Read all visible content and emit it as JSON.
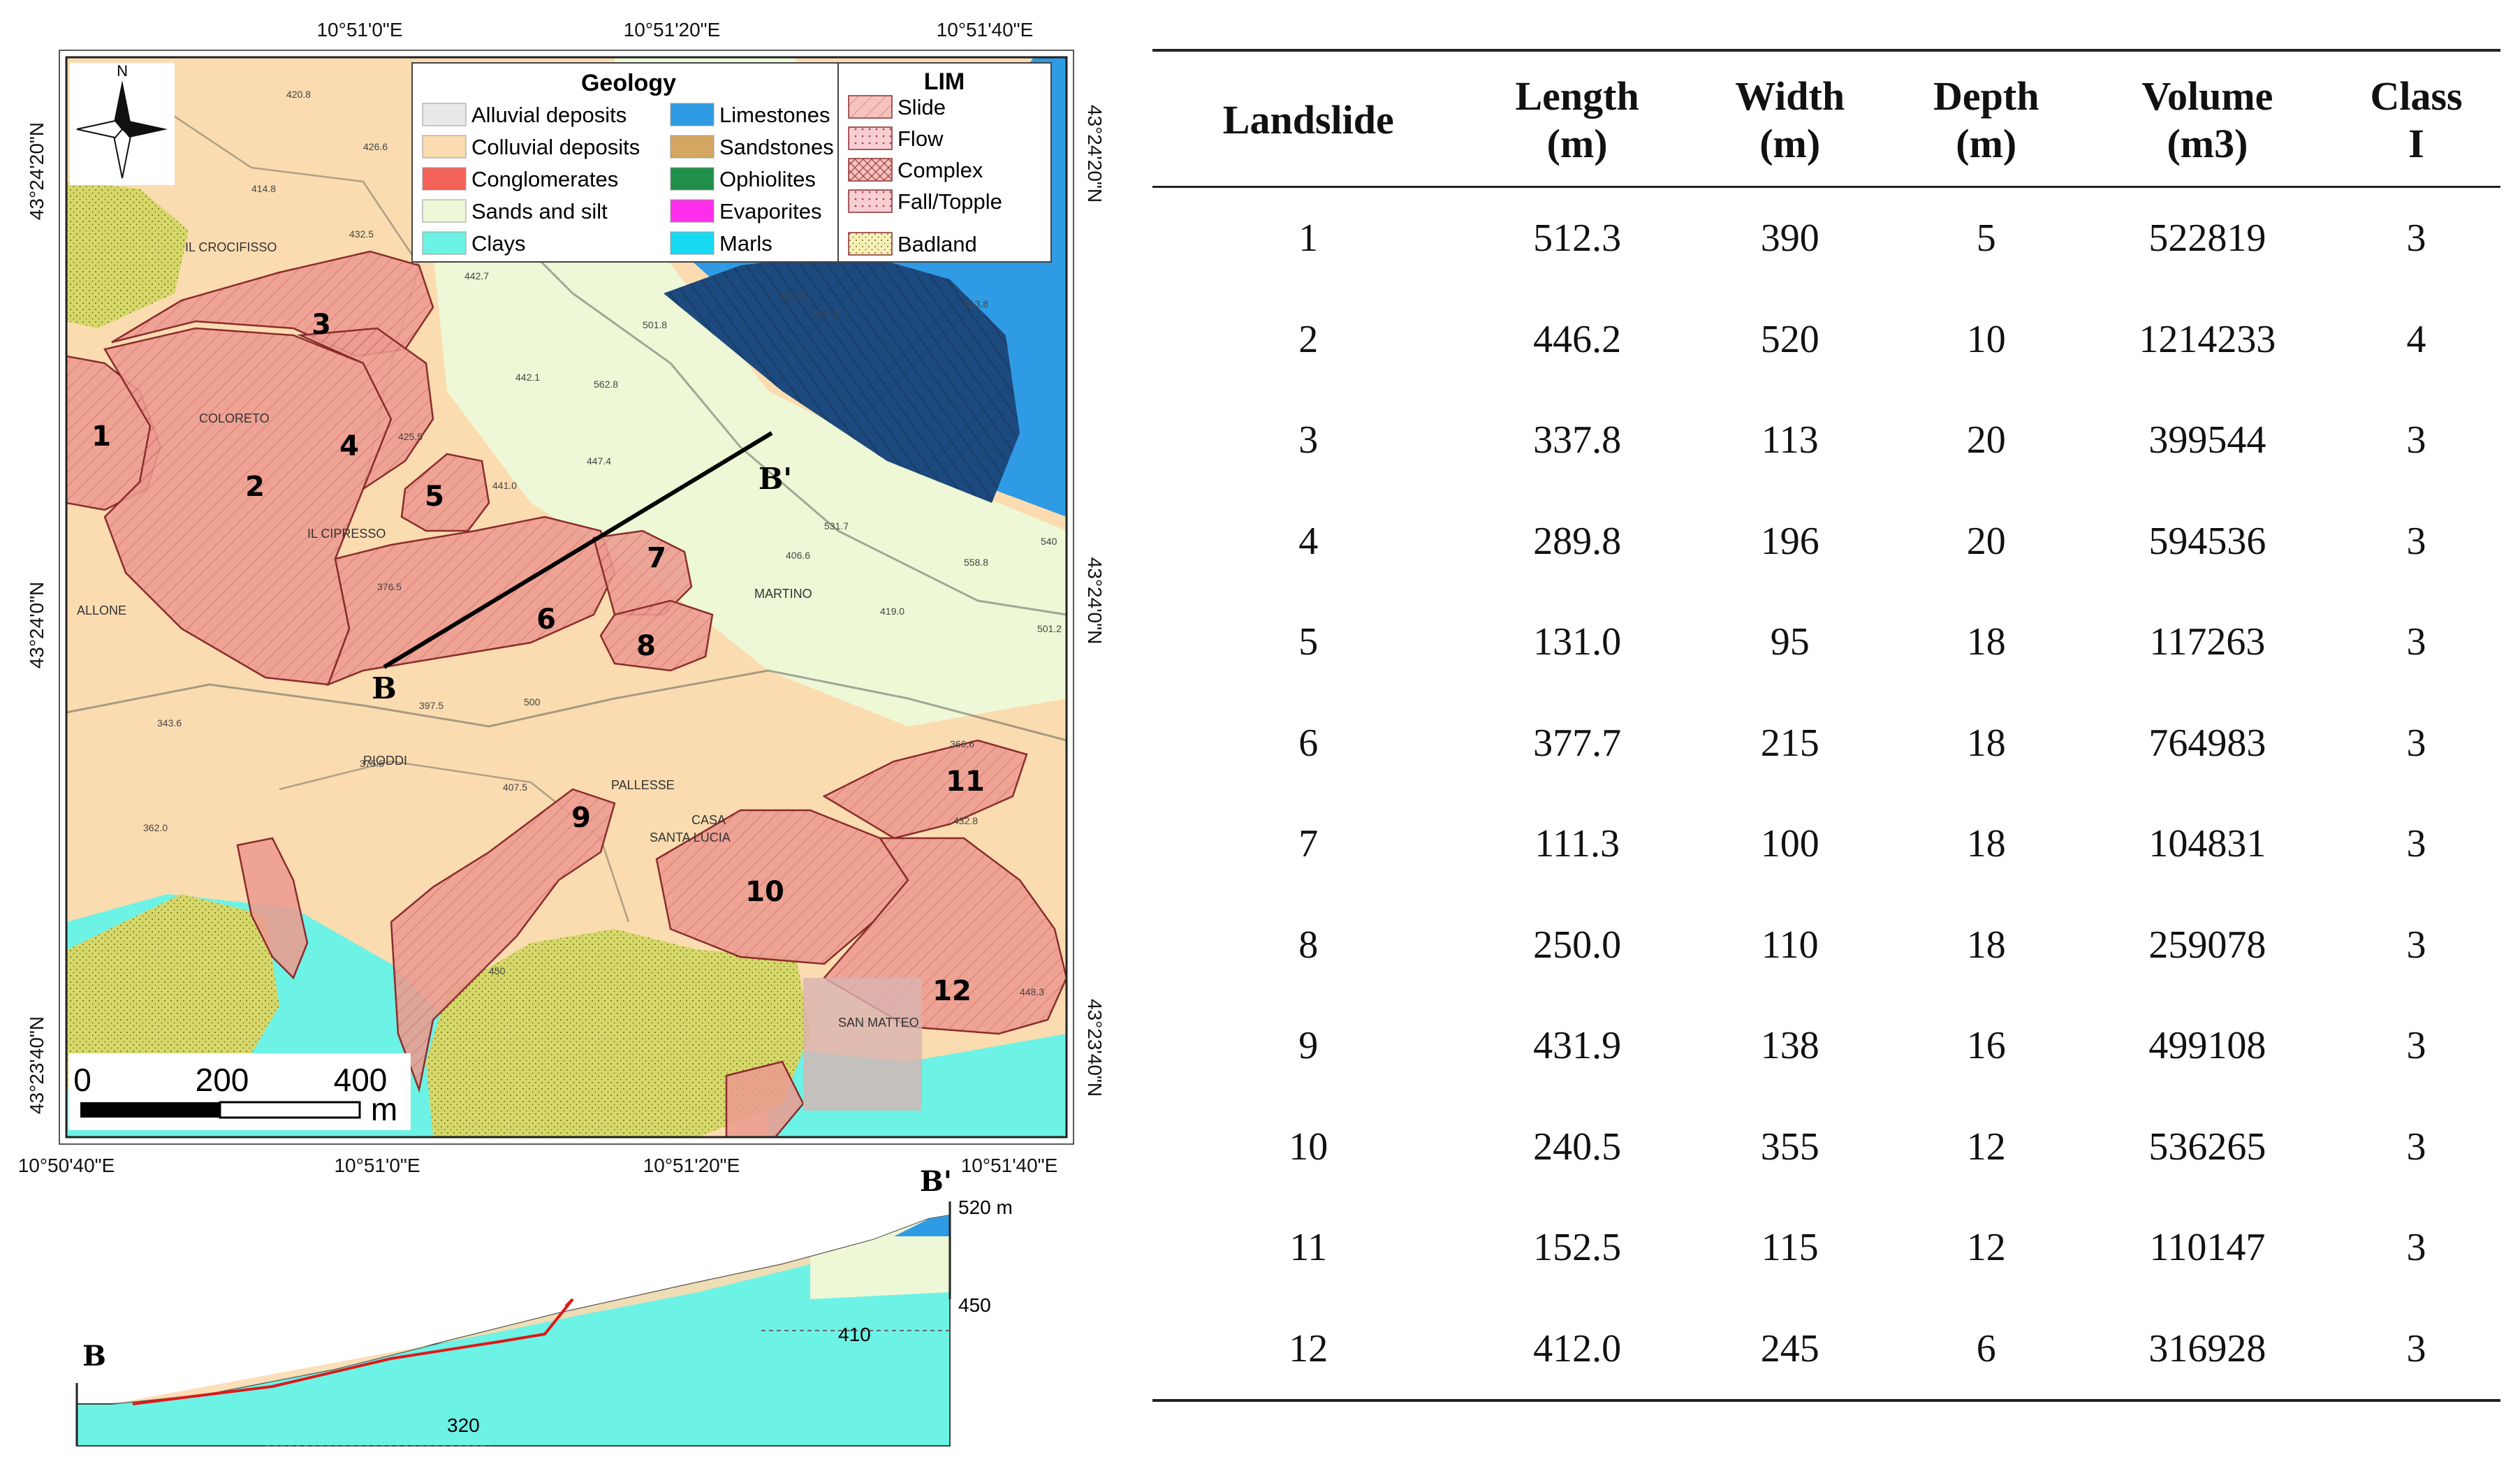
{
  "map": {
    "lon_labels_top": [
      "10°51'0\"E",
      "10°51'20\"E",
      "10°51'40\"E"
    ],
    "lon_labels_bottom": [
      "10°50'40\"E",
      "10°51'0\"E",
      "10°51'20\"E",
      "10°51'40\"E"
    ],
    "lat_labels": [
      "43°24'20\"N",
      "43°24'0\"N",
      "43°23'40\"N"
    ],
    "north_label": "N",
    "scale_numbers": [
      "0",
      "200",
      "400"
    ],
    "scale_unit": "m",
    "section_labels": [
      "B",
      "B'"
    ],
    "landslide_numbers": [
      "1",
      "2",
      "3",
      "4",
      "5",
      "6",
      "7",
      "8",
      "9",
      "10",
      "11",
      "12"
    ],
    "place_names": [
      "IL CROCIFISSO",
      "COLORETO",
      "IL CIPRESSO",
      "ALLONE",
      "RIODDI",
      "PALLESSE",
      "SANTA LUCIA",
      "CASA",
      "SAN MATTEO",
      "MARTINO"
    ],
    "spot_heights": [
      "420.8",
      "426.6",
      "414.8",
      "432.5",
      "442.7",
      "501.8",
      "562.8",
      "512.0",
      "502.3",
      "513.8",
      "442.1",
      "441.0",
      "447.4",
      "425.5",
      "376.5",
      "397.5",
      "375.5",
      "343.6",
      "362.0",
      "407.5",
      "366.6",
      "432.8",
      "406.6",
      "419.0",
      "501.2",
      "540",
      "558.8",
      "531.7",
      "450",
      "448.3",
      "500"
    ]
  },
  "legend": {
    "geology_title": "Geology",
    "geology": [
      {
        "label": "Alluvial deposits",
        "color": "#e9e9e9"
      },
      {
        "label": "Colluvial deposits",
        "color": "#fbdcb0"
      },
      {
        "label": "Conglomerates",
        "color": "#f26258"
      },
      {
        "label": "Sands and silt",
        "color": "#eef8d6"
      },
      {
        "label": "Clays",
        "color": "#6df2e6"
      },
      {
        "label": "Limestones",
        "color": "#2f9be4"
      },
      {
        "label": "Sandstones",
        "color": "#d3a662"
      },
      {
        "label": "Ophiolites",
        "color": "#1f8f49"
      },
      {
        "label": "Evaporites",
        "color": "#ff2eea"
      },
      {
        "label": "Marls",
        "color": "#17d9f2"
      }
    ],
    "lim_title": "LIM",
    "lim": [
      "Slide",
      "Flow",
      "Complex",
      "Fall/Topple",
      "Badland"
    ]
  },
  "section": {
    "label_b": "B",
    "label_b_prime": "B'",
    "elev_top": "520 m",
    "elev_450": "450",
    "elev_410": "410",
    "elev_320": "320"
  },
  "table": {
    "headers": [
      [
        "Landslide"
      ],
      [
        "Length",
        "(m)"
      ],
      [
        "Width",
        "(m)"
      ],
      [
        "Depth",
        "(m)"
      ],
      [
        "Volume",
        "(m3)"
      ],
      [
        "Class",
        "I"
      ]
    ],
    "rows": [
      [
        "1",
        "512.3",
        "390",
        "5",
        "522819",
        "3"
      ],
      [
        "2",
        "446.2",
        "520",
        "10",
        "1214233",
        "4"
      ],
      [
        "3",
        "337.8",
        "113",
        "20",
        "399544",
        "3"
      ],
      [
        "4",
        "289.8",
        "196",
        "20",
        "594536",
        "3"
      ],
      [
        "5",
        "131.0",
        "95",
        "18",
        "117263",
        "3"
      ],
      [
        "6",
        "377.7",
        "215",
        "18",
        "764983",
        "3"
      ],
      [
        "7",
        "111.3",
        "100",
        "18",
        "104831",
        "3"
      ],
      [
        "8",
        "250.0",
        "110",
        "18",
        "259078",
        "3"
      ],
      [
        "9",
        "431.9",
        "138",
        "16",
        "499108",
        "3"
      ],
      [
        "10",
        "240.5",
        "355",
        "12",
        "536265",
        "3"
      ],
      [
        "11",
        "152.5",
        "115",
        "12",
        "110147",
        "3"
      ],
      [
        "12",
        "412.0",
        "245",
        "6",
        "316928",
        "3"
      ]
    ]
  }
}
